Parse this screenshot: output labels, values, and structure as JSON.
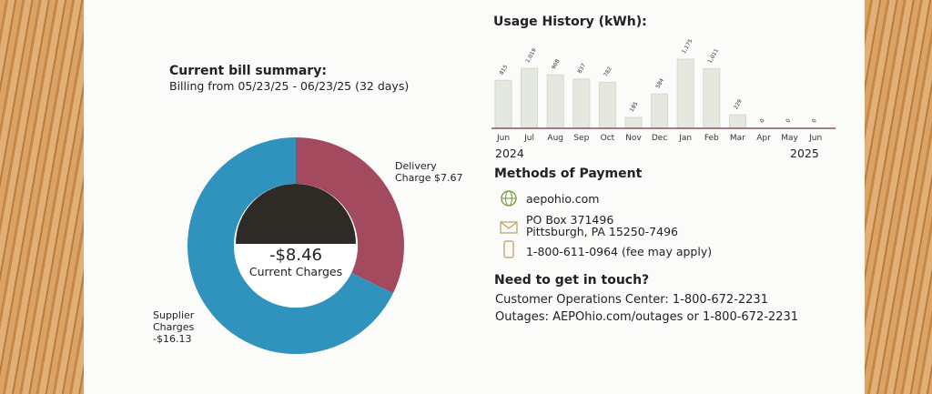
{
  "summary": {
    "title": "Current bill summary:",
    "billing": "Billing from 05/23/25 - 06/23/25 (32 days)",
    "delivery_label_1": "Delivery",
    "delivery_label_2": "Charge $7.67",
    "supplier_label_1": "Supplier",
    "supplier_label_2": "Charges",
    "supplier_label_3": "-$16.13",
    "total": "-$8.46",
    "total_label": "Current Charges"
  },
  "usage": {
    "title": "Usage History (kWh):",
    "year_start": "2024",
    "year_end": "2025"
  },
  "payment": {
    "title": "Methods of Payment",
    "web": "aepohio.com",
    "mail_1": "PO Box 371496",
    "mail_2": "Pittsburgh, PA 15250-7496",
    "phone": "1-800-611-0964 (fee may apply)"
  },
  "contact": {
    "title": "Need to get in touch?",
    "line_1": "Customer Operations Center: 1-800-672-2231",
    "line_2": "Outages: AEPOhio.com/outages or 1-800-672-2231"
  },
  "colors": {
    "delivery": "#a34a5e",
    "supplier": "#2f93bd",
    "center": "#2e2b26",
    "bar": "#e4e8df",
    "axis": "#7a3344",
    "icon": "#6a9a3c"
  },
  "chart_data": [
    {
      "type": "bar",
      "title": "Usage History (kWh):",
      "categories": [
        "Jun",
        "Jul",
        "Aug",
        "Sep",
        "Oct",
        "Nov",
        "Dec",
        "Jan",
        "Feb",
        "Mar",
        "Apr",
        "May",
        "Jun"
      ],
      "values": [
        815,
        1019,
        908,
        837,
        782,
        185,
        584,
        1175,
        1011,
        229,
        0,
        0,
        0
      ],
      "labels": [
        "815",
        "1,019",
        "908",
        "837",
        "782",
        "185",
        "584",
        "1,175",
        "1,011",
        "229",
        "0",
        "0",
        "0"
      ],
      "ylim": [
        0,
        1175
      ]
    },
    {
      "type": "pie",
      "title": "Current bill summary:",
      "categories": [
        "Delivery Charge",
        "Supplier Charges"
      ],
      "values": [
        7.67,
        -16.13
      ]
    }
  ]
}
